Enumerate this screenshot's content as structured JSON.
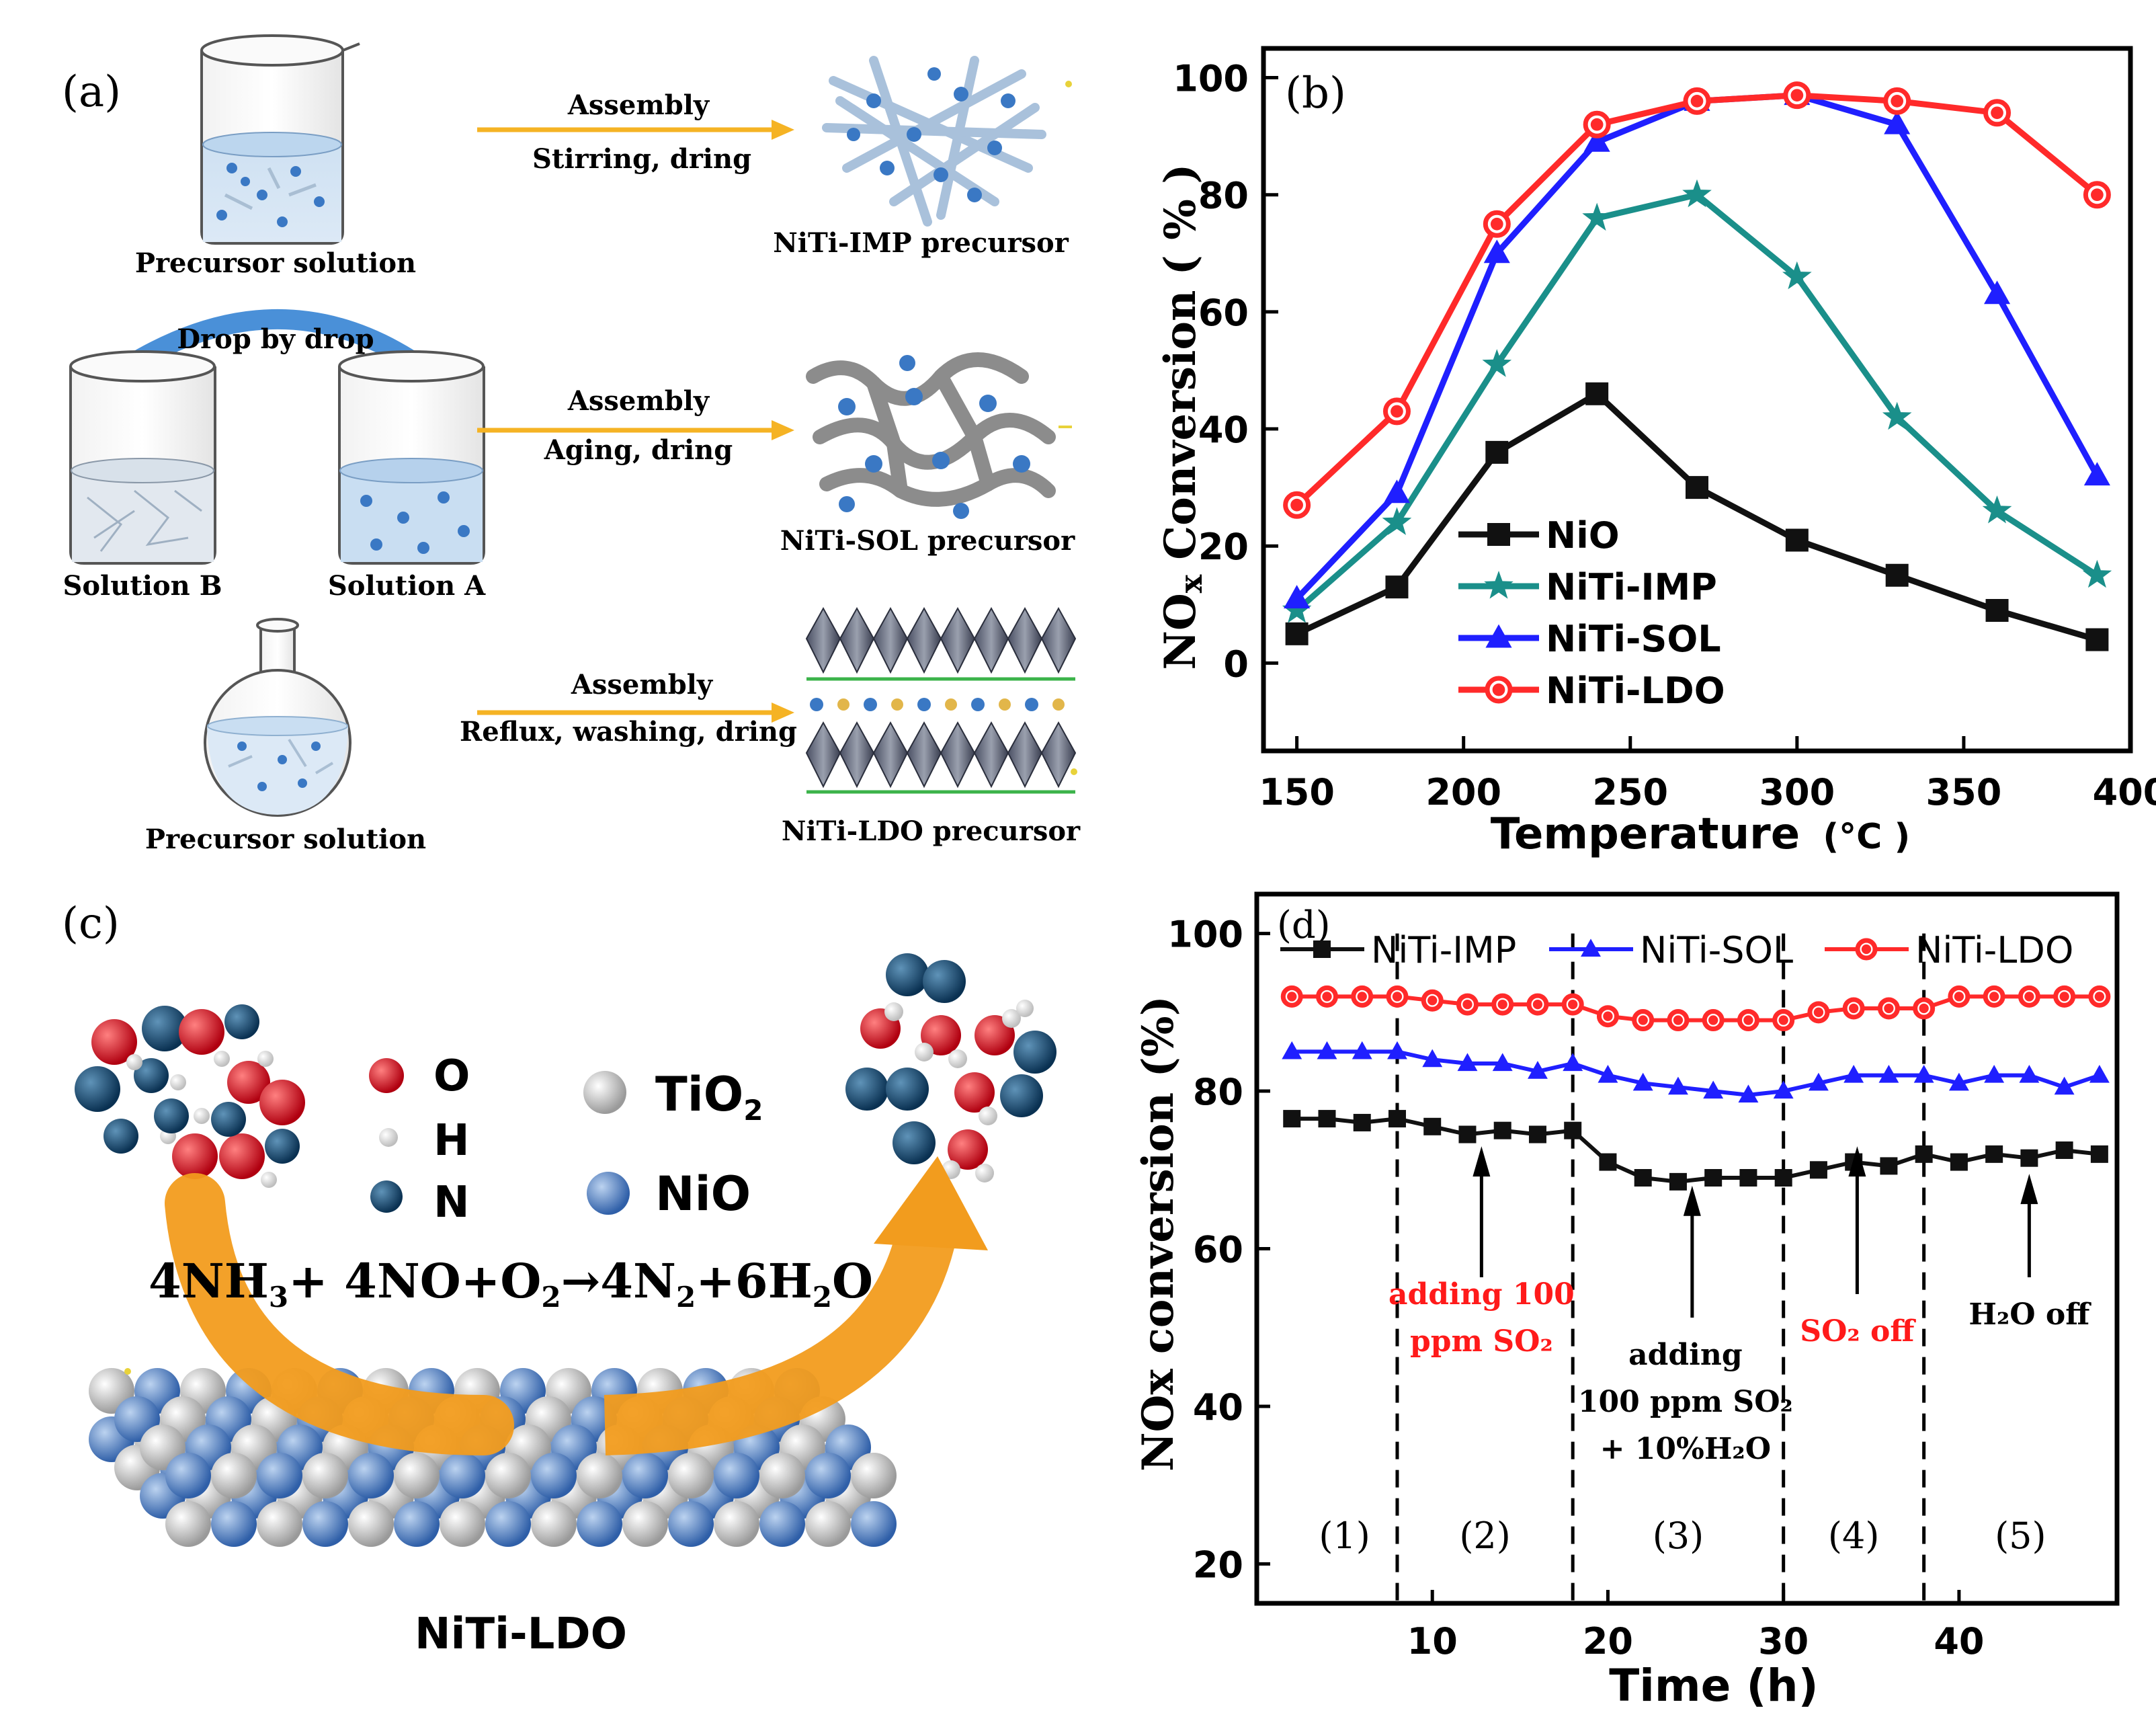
{
  "colors": {
    "arrow": "#f5b324",
    "arrow_big": "#f29c1e",
    "blue_dot": "#3a78c4",
    "red": "#ff2a2a",
    "blue": "#1f1fff",
    "teal": "#1a8f8a",
    "black": "#111111",
    "red_text": "#ff1a1a",
    "O_atom": "#e0001a",
    "N_atom": "#0f4a70",
    "TiO2_ball": "#d4d4d4",
    "NiO_ball": "#5b86c8"
  },
  "panel_a": {
    "label": "(a)",
    "row1": {
      "step_top": "Assembly",
      "step_bottom": "Stirring, dring",
      "left_caption": "Precursor solution",
      "right_caption": "NiTi-IMP precursor"
    },
    "row2": {
      "transfer": "Drop by drop",
      "step_top": "Assembly",
      "step_bottom": "Aging, dring",
      "left_caption_b": "Solution B",
      "left_caption_a": "Solution A",
      "right_caption": "NiTi-SOL precursor"
    },
    "row3": {
      "step_top": "Assembly",
      "step_bottom": "Reflux, washing, dring",
      "left_caption": "Precursor solution",
      "right_caption": "NiTi-LDO precursor"
    }
  },
  "panel_c": {
    "label": "(c)",
    "legend": [
      {
        "name": "O",
        "icon": "red-ball"
      },
      {
        "name": "H",
        "icon": "white-ball"
      },
      {
        "name": "N",
        "icon": "dark-blue-ball"
      },
      {
        "name": "TiO",
        "sub": "2",
        "icon": "grey-ball"
      },
      {
        "name": "NiO",
        "icon": "blue-ball"
      }
    ],
    "reaction": {
      "p1": "4NH",
      "s1": "3",
      "p2": "+ 4NO+O",
      "s2": "2",
      "p3": "→4N",
      "s3": "2",
      "p4": "+6H",
      "s4": "2",
      "p5": "O"
    },
    "caption": "NiTi-LDO"
  },
  "chart_data": [
    {
      "panel": "(b)",
      "type": "line",
      "xlabel": "Temperature",
      "xunit": "(°C )",
      "ylabel_main": "Conversion",
      "ylabel_prefix": "NO",
      "ylabel_sub": "x",
      "yunit": "( % )",
      "xlim": [
        140,
        400
      ],
      "ylim": [
        -15,
        105
      ],
      "xticks": [
        150,
        200,
        250,
        300,
        350,
        400
      ],
      "yticks": [
        0,
        20,
        40,
        60,
        80,
        100
      ],
      "x": [
        150,
        180,
        210,
        240,
        270,
        300,
        330,
        360,
        390
      ],
      "legend_position": "lower-left",
      "series": [
        {
          "name": "NiO",
          "marker": "square",
          "color": "#111111",
          "values": [
            5,
            13,
            36,
            46,
            30,
            21,
            15,
            9,
            4
          ]
        },
        {
          "name": "NiTi-IMP",
          "marker": "star",
          "color": "#1a8f8a",
          "values": [
            9,
            24,
            51,
            76,
            80,
            66,
            42,
            26,
            15
          ]
        },
        {
          "name": "NiTi-SOL",
          "marker": "triangle",
          "color": "#1f1fff",
          "values": [
            11,
            29,
            70,
            89,
            96,
            97,
            92,
            63,
            32
          ]
        },
        {
          "name": "NiTi-LDO",
          "marker": "circle",
          "color": "#ff2a2a",
          "values": [
            27,
            43,
            75,
            92,
            96,
            97,
            96,
            94,
            80
          ]
        }
      ]
    },
    {
      "panel": "(d)",
      "type": "line",
      "xlabel": "Time (h)",
      "ylabel": "NOx  conversion (%)",
      "xlim": [
        0,
        49
      ],
      "ylim": [
        15,
        105
      ],
      "xticks": [
        10,
        20,
        30,
        40
      ],
      "yticks": [
        20,
        40,
        60,
        80,
        100
      ],
      "x": [
        2,
        4,
        6,
        8,
        10,
        12,
        14,
        16,
        18,
        20,
        22,
        24,
        26,
        28,
        30,
        32,
        34,
        36,
        38,
        40,
        42,
        44,
        46,
        48
      ],
      "legend_position": "top",
      "series": [
        {
          "name": "NiTi-IMP",
          "marker": "square",
          "color": "#111111",
          "values": [
            76.5,
            76.5,
            76,
            76.5,
            75.5,
            74.5,
            75,
            74.5,
            75,
            71,
            69,
            68.5,
            69,
            69,
            69,
            70,
            71,
            70.5,
            72,
            71,
            72,
            71.5,
            72.5,
            72
          ]
        },
        {
          "name": "NiTi-SOL",
          "marker": "triangle",
          "color": "#1f1fff",
          "values": [
            85,
            85,
            85,
            85,
            84,
            83.5,
            83.5,
            82.5,
            83.5,
            82,
            81,
            80.5,
            80,
            79.5,
            80,
            81,
            82,
            82,
            82,
            81,
            82,
            82,
            80.5,
            82
          ]
        },
        {
          "name": "NiTi-LDO",
          "marker": "circle",
          "color": "#ff2a2a",
          "values": [
            92,
            92,
            92,
            92,
            91.5,
            91,
            91,
            91,
            91,
            89.5,
            89,
            89,
            89,
            89,
            89,
            90,
            90.5,
            90.5,
            90.5,
            92,
            92,
            92,
            92,
            92
          ]
        }
      ],
      "dividers": [
        8,
        18,
        30,
        38
      ],
      "stages": [
        {
          "label": "(1)",
          "x": 5
        },
        {
          "label": "(2)",
          "x": 13
        },
        {
          "label": "(3)",
          "x": 24
        },
        {
          "label": "(4)",
          "x": 34
        },
        {
          "label": "(5)",
          "x": 43.5
        }
      ],
      "annotations": [
        {
          "lines": [
            "adding 100",
            "ppm SO₂"
          ],
          "red": true,
          "arrow_x": 12.8
        },
        {
          "lines": [
            "adding",
            "100 ppm SO₂",
            "+ 10%H₂O"
          ],
          "red": false,
          "arrow_x": 24.8
        },
        {
          "lines": [
            "SO₂ off"
          ],
          "red": true,
          "arrow_x": 34.2
        },
        {
          "lines": [
            "H₂O off"
          ],
          "red": false,
          "arrow_x": 44
        }
      ]
    }
  ]
}
